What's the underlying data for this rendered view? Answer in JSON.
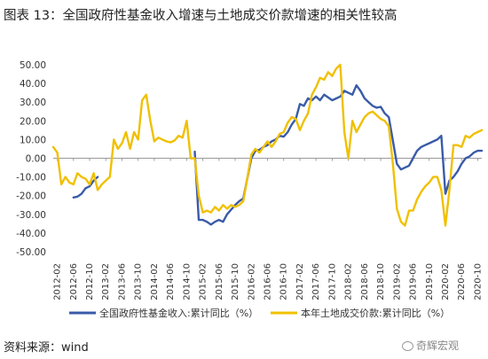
{
  "title": "图表 13：全国政府性基金收入增速与土地成交价款增速的相关性较高",
  "source": "资料来源：wind",
  "watermark": "奇辉宏观",
  "chart_data": {
    "type": "line",
    "title": "图表 13：全国政府性基金收入增速与土地成交价款增速的相关性较高",
    "xlabel": "",
    "ylabel": "",
    "ylim": [
      -50,
      50
    ],
    "yticks": [
      "50.00",
      "40.00",
      "30.00",
      "20.00",
      "10.00",
      "0.00",
      "-10.00",
      "-20.00",
      "-30.00",
      "-40.00",
      "-50.00"
    ],
    "x_start": "2012-02",
    "x_end": "2020-10",
    "xticks": [
      "2012-02",
      "2012-06",
      "2012-10",
      "2013-02",
      "2013-06",
      "2013-10",
      "2014-02",
      "2014-06",
      "2014-10",
      "2015-02",
      "2015-06",
      "2015-10",
      "2016-02",
      "2016-06",
      "2016-10",
      "2017-02",
      "2017-06",
      "2017-10",
      "2018-02",
      "2018-06",
      "2018-10",
      "2019-02",
      "2019-06",
      "2019-10",
      "2020-02",
      "2020-06",
      "2020-10"
    ],
    "grid": false,
    "legend_position": "bottom",
    "series": [
      {
        "name": "全国政府性基金收入:累计同比（%）",
        "color": "#3A5BA8",
        "points": [
          [
            "2012-06",
            -21
          ],
          [
            "2012-07",
            -20.5
          ],
          [
            "2012-08",
            -19
          ],
          [
            "2012-09",
            -16
          ],
          [
            "2012-10",
            -15
          ],
          [
            "2012-11",
            -12
          ],
          [
            "2012-12",
            -10
          ],
          [
            null,
            null
          ],
          [
            "2014-12",
            3.5
          ],
          [
            "2015-01",
            -33
          ],
          [
            "2015-02",
            -33
          ],
          [
            "2015-03",
            -34
          ],
          [
            "2015-04",
            -35.5
          ],
          [
            "2015-05",
            -34
          ],
          [
            "2015-06",
            -33
          ],
          [
            "2015-07",
            -34
          ],
          [
            "2015-08",
            -30
          ],
          [
            "2015-09",
            -27.5
          ],
          [
            "2015-10",
            -25
          ],
          [
            "2015-11",
            -23
          ],
          [
            "2015-12",
            -21.5
          ],
          [
            "2016-02",
            0
          ],
          [
            "2016-03",
            4
          ],
          [
            "2016-04",
            4.5
          ],
          [
            "2016-05",
            6
          ],
          [
            "2016-06",
            7
          ],
          [
            "2016-07",
            9
          ],
          [
            "2016-08",
            10
          ],
          [
            "2016-09",
            12
          ],
          [
            "2016-10",
            11.5
          ],
          [
            "2016-11",
            14
          ],
          [
            "2016-12",
            18
          ],
          [
            "2017-01",
            21
          ],
          [
            "2017-02",
            29
          ],
          [
            "2017-03",
            28
          ],
          [
            "2017-04",
            32
          ],
          [
            "2017-05",
            31
          ],
          [
            "2017-06",
            33
          ],
          [
            "2017-07",
            31
          ],
          [
            "2017-08",
            34
          ],
          [
            "2017-09",
            32.5
          ],
          [
            "2017-10",
            31
          ],
          [
            "2017-11",
            32
          ],
          [
            "2017-12",
            33
          ],
          [
            "2018-01",
            36
          ],
          [
            "2018-02",
            35
          ],
          [
            "2018-03",
            34
          ],
          [
            "2018-04",
            39
          ],
          [
            "2018-05",
            36
          ],
          [
            "2018-06",
            32
          ],
          [
            "2018-07",
            30
          ],
          [
            "2018-08",
            28
          ],
          [
            "2018-09",
            27
          ],
          [
            "2018-10",
            27.5
          ],
          [
            "2018-11",
            24
          ],
          [
            "2018-12",
            22
          ],
          [
            "2019-02",
            -3
          ],
          [
            "2019-03",
            -6
          ],
          [
            "2019-04",
            -5
          ],
          [
            "2019-05",
            -4
          ],
          [
            "2019-06",
            0
          ],
          [
            "2019-07",
            4
          ],
          [
            "2019-08",
            6
          ],
          [
            "2019-09",
            7
          ],
          [
            "2019-10",
            8
          ],
          [
            "2019-11",
            9
          ],
          [
            "2019-12",
            10
          ],
          [
            "2020-01",
            12
          ],
          [
            "2020-02",
            -19
          ],
          [
            "2020-03",
            -12
          ],
          [
            "2020-04",
            -10
          ],
          [
            "2020-05",
            -7
          ],
          [
            "2020-06",
            -3
          ],
          [
            "2020-07",
            0
          ],
          [
            "2020-08",
            1
          ],
          [
            "2020-09",
            3
          ],
          [
            "2020-10",
            4
          ],
          [
            "2020-11",
            4
          ]
        ]
      },
      {
        "name": "本年土地成交价款:累计同比（%）",
        "color": "#F0C000",
        "points": [
          [
            "2012-01",
            6
          ],
          [
            "2012-02",
            3
          ],
          [
            "2012-03",
            -14
          ],
          [
            "2012-04",
            -10
          ],
          [
            "2012-05",
            -13
          ],
          [
            "2012-06",
            -14
          ],
          [
            "2012-07",
            -8
          ],
          [
            "2012-08",
            -10
          ],
          [
            "2012-09",
            -11
          ],
          [
            "2012-10",
            -14
          ],
          [
            "2012-11",
            -8
          ],
          [
            "2012-12",
            -17
          ],
          [
            "2013-01",
            -14
          ],
          [
            "2013-02",
            -12
          ],
          [
            "2013-03",
            -10
          ],
          [
            "2013-04",
            10
          ],
          [
            "2013-05",
            5
          ],
          [
            "2013-06",
            8
          ],
          [
            "2013-07",
            14
          ],
          [
            "2013-08",
            5
          ],
          [
            "2013-09",
            14
          ],
          [
            "2013-10",
            10
          ],
          [
            "2013-11",
            31
          ],
          [
            "2013-12",
            34
          ],
          [
            "2014-01",
            20
          ],
          [
            "2014-02",
            9
          ],
          [
            "2014-03",
            11
          ],
          [
            "2014-04",
            10
          ],
          [
            "2014-05",
            9
          ],
          [
            "2014-06",
            8.5
          ],
          [
            "2014-07",
            9.5
          ],
          [
            "2014-08",
            12
          ],
          [
            "2014-09",
            11
          ],
          [
            "2014-10",
            20
          ],
          [
            "2014-11",
            0
          ],
          [
            "2014-12",
            0
          ],
          [
            "2015-01",
            -20
          ],
          [
            "2015-02",
            -29
          ],
          [
            "2015-03",
            -28
          ],
          [
            "2015-04",
            -29
          ],
          [
            "2015-05",
            -26
          ],
          [
            "2015-06",
            -28
          ],
          [
            "2015-07",
            -25
          ],
          [
            "2015-08",
            -27
          ],
          [
            "2015-09",
            -25
          ],
          [
            "2015-10",
            -26
          ],
          [
            "2015-11",
            -25
          ],
          [
            "2015-12",
            -23
          ],
          [
            "2016-02",
            2
          ],
          [
            "2016-03",
            5
          ],
          [
            "2016-04",
            3
          ],
          [
            "2016-05",
            6
          ],
          [
            "2016-06",
            9
          ],
          [
            "2016-07",
            6
          ],
          [
            "2016-08",
            9
          ],
          [
            "2016-09",
            13
          ],
          [
            "2016-10",
            14
          ],
          [
            "2016-11",
            19
          ],
          [
            "2016-12",
            22
          ],
          [
            "2017-01",
            21
          ],
          [
            "2017-02",
            15
          ],
          [
            "2017-03",
            20
          ],
          [
            "2017-04",
            24
          ],
          [
            "2017-05",
            34
          ],
          [
            "2017-06",
            38
          ],
          [
            "2017-07",
            43
          ],
          [
            "2017-08",
            42
          ],
          [
            "2017-09",
            46
          ],
          [
            "2017-10",
            44
          ],
          [
            "2017-11",
            48
          ],
          [
            "2017-12",
            50
          ],
          [
            "2018-01",
            14
          ],
          [
            "2018-02",
            0
          ],
          [
            "2018-03",
            20
          ],
          [
            "2018-04",
            14
          ],
          [
            "2018-05",
            18
          ],
          [
            "2018-06",
            22
          ],
          [
            "2018-07",
            24
          ],
          [
            "2018-08",
            25
          ],
          [
            "2018-09",
            23
          ],
          [
            "2018-10",
            21
          ],
          [
            "2018-11",
            20
          ],
          [
            "2018-12",
            17
          ],
          [
            "2019-01",
            -3
          ],
          [
            "2019-02",
            -27
          ],
          [
            "2019-03",
            -34
          ],
          [
            "2019-04",
            -36
          ],
          [
            "2019-05",
            -28
          ],
          [
            "2019-06",
            -28
          ],
          [
            "2019-07",
            -22
          ],
          [
            "2019-08",
            -18
          ],
          [
            "2019-09",
            -15
          ],
          [
            "2019-10",
            -13
          ],
          [
            "2019-11",
            -10
          ],
          [
            "2019-12",
            -10
          ],
          [
            "2020-01",
            -17
          ],
          [
            "2020-02",
            -36
          ],
          [
            "2020-03",
            -17
          ],
          [
            "2020-04",
            7
          ],
          [
            "2020-05",
            7
          ],
          [
            "2020-06",
            6
          ],
          [
            "2020-07",
            12
          ],
          [
            "2020-08",
            11
          ],
          [
            "2020-09",
            13
          ],
          [
            "2020-10",
            14
          ],
          [
            "2020-11",
            15
          ]
        ]
      }
    ]
  }
}
